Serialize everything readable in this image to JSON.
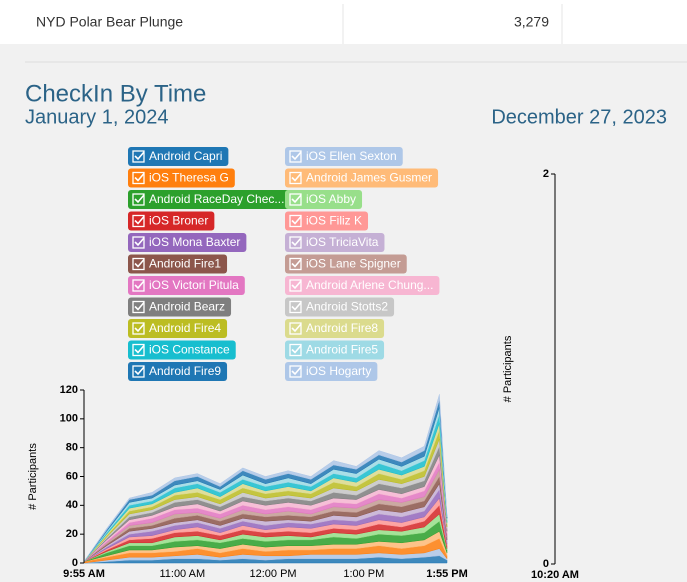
{
  "header": {
    "table_row": [
      "NYD Polar Bear Plunge",
      "3,279"
    ],
    "section_title": "CheckIn By Time"
  },
  "chart_data": [
    {
      "type": "area",
      "stacked": true,
      "title": "January 1, 2024",
      "y_label": "# Participants",
      "x": [
        "9:55 AM",
        "10:10 AM",
        "10:25 AM",
        "10:40 AM",
        "10:55 AM",
        "11:10 AM",
        "11:25 AM",
        "11:40 AM",
        "11:55 AM",
        "12:10 PM",
        "12:25 PM",
        "12:40 PM",
        "12:55 PM",
        "1:10 PM",
        "1:25 PM",
        "1:40 PM",
        "1:50 PM",
        "1:55 PM"
      ],
      "xticks": [
        "9:55 AM",
        "11:00 AM",
        "12:00 PM",
        "1:00 PM",
        "1:55 PM"
      ],
      "ylim": [
        0,
        120
      ],
      "yticks": [
        0,
        20,
        40,
        60,
        80,
        100,
        120
      ],
      "series": [
        {
          "name": "Android Capri",
          "color": "#1f77b4",
          "values": [
            0,
            1,
            2,
            2,
            3,
            3,
            2,
            3,
            2,
            3,
            3,
            3,
            3,
            4,
            3,
            4,
            5,
            2
          ]
        },
        {
          "name": "iOS Ellen Sexton",
          "color": "#aec7e8",
          "values": [
            0,
            1,
            2,
            2,
            2,
            3,
            2,
            3,
            3,
            2,
            3,
            3,
            3,
            3,
            3,
            3,
            5,
            1
          ]
        },
        {
          "name": "iOS Theresa G",
          "color": "#ff7f0e",
          "values": [
            1,
            2,
            3,
            3,
            3,
            4,
            3,
            4,
            3,
            4,
            3,
            4,
            4,
            5,
            4,
            5,
            7,
            2
          ]
        },
        {
          "name": "Android James Gusmer",
          "color": "#ffbb78",
          "values": [
            0,
            1,
            2,
            2,
            3,
            2,
            3,
            3,
            3,
            3,
            3,
            3,
            3,
            3,
            4,
            4,
            5,
            2
          ]
        },
        {
          "name": "Android RaceDay Chec...",
          "color": "#2ca02c",
          "values": [
            0,
            2,
            3,
            3,
            4,
            4,
            4,
            4,
            4,
            4,
            4,
            5,
            4,
            5,
            5,
            5,
            7,
            2
          ]
        },
        {
          "name": "iOS Abby",
          "color": "#98df8a",
          "values": [
            0,
            1,
            2,
            2,
            3,
            3,
            2,
            3,
            3,
            3,
            2,
            3,
            3,
            3,
            3,
            4,
            5,
            1
          ]
        },
        {
          "name": "iOS Broner",
          "color": "#d62728",
          "values": [
            0,
            1,
            2,
            3,
            3,
            3,
            3,
            3,
            3,
            3,
            3,
            3,
            3,
            4,
            3,
            4,
            6,
            2
          ]
        },
        {
          "name": "iOS Filiz K",
          "color": "#ff9896",
          "values": [
            0,
            1,
            2,
            2,
            2,
            3,
            2,
            3,
            2,
            3,
            3,
            3,
            3,
            3,
            3,
            3,
            5,
            1
          ]
        },
        {
          "name": "iOS Mona Baxter",
          "color": "#9467bd",
          "values": [
            0,
            1,
            2,
            3,
            3,
            3,
            3,
            3,
            3,
            3,
            3,
            3,
            3,
            4,
            4,
            4,
            6,
            2
          ]
        },
        {
          "name": "iOS TriciaVita",
          "color": "#c5b0d5",
          "values": [
            0,
            1,
            2,
            2,
            2,
            2,
            2,
            2,
            3,
            2,
            2,
            3,
            3,
            3,
            3,
            3,
            4,
            1
          ]
        },
        {
          "name": "Android Fire1",
          "color": "#8c564b",
          "values": [
            0,
            1,
            2,
            2,
            3,
            3,
            3,
            3,
            3,
            3,
            3,
            3,
            3,
            4,
            4,
            4,
            5,
            2
          ]
        },
        {
          "name": "iOS Lane Spigner",
          "color": "#c49c94",
          "values": [
            0,
            1,
            2,
            2,
            3,
            2,
            2,
            3,
            2,
            3,
            2,
            3,
            3,
            3,
            3,
            3,
            5,
            1
          ]
        },
        {
          "name": "iOS Victori Pitula",
          "color": "#e377c2",
          "values": [
            0,
            1,
            2,
            3,
            3,
            3,
            3,
            3,
            3,
            3,
            3,
            3,
            3,
            4,
            3,
            4,
            5,
            2
          ]
        },
        {
          "name": "Android Arlene Chung...",
          "color": "#f7b6d2",
          "values": [
            0,
            1,
            2,
            2,
            2,
            3,
            2,
            3,
            3,
            3,
            3,
            3,
            3,
            3,
            3,
            3,
            5,
            1
          ]
        },
        {
          "name": "Android Bearz",
          "color": "#7f7f7f",
          "values": [
            0,
            1,
            2,
            2,
            3,
            3,
            3,
            3,
            3,
            3,
            3,
            4,
            3,
            4,
            4,
            4,
            6,
            2
          ]
        },
        {
          "name": "Android Stotts2",
          "color": "#c7c7c7",
          "values": [
            0,
            1,
            2,
            2,
            2,
            2,
            2,
            3,
            2,
            2,
            2,
            3,
            3,
            3,
            3,
            3,
            5,
            1
          ]
        },
        {
          "name": "Android Fire4",
          "color": "#bcbd22",
          "values": [
            0,
            1,
            2,
            2,
            3,
            3,
            3,
            3,
            3,
            3,
            3,
            4,
            3,
            4,
            3,
            4,
            6,
            2
          ]
        },
        {
          "name": "Android Fire8",
          "color": "#dbdb8d",
          "values": [
            0,
            1,
            2,
            2,
            2,
            3,
            2,
            3,
            2,
            3,
            2,
            3,
            3,
            3,
            3,
            3,
            5,
            1
          ]
        },
        {
          "name": "iOS Constance",
          "color": "#17becf",
          "values": [
            0,
            1,
            2,
            2,
            3,
            3,
            3,
            3,
            3,
            3,
            3,
            3,
            3,
            4,
            3,
            4,
            6,
            2
          ]
        },
        {
          "name": "Android Fire5",
          "color": "#9edae5",
          "values": [
            0,
            1,
            2,
            2,
            2,
            2,
            2,
            3,
            2,
            3,
            2,
            3,
            3,
            3,
            3,
            3,
            5,
            1
          ]
        },
        {
          "name": "Android Fire9",
          "color": "#1f77b4",
          "values": [
            0,
            1,
            2,
            2,
            3,
            3,
            2,
            3,
            3,
            3,
            3,
            3,
            3,
            3,
            3,
            4,
            5,
            1
          ]
        },
        {
          "name": "iOS Hogarty",
          "color": "#aec7e8",
          "values": [
            0,
            1,
            1,
            2,
            2,
            2,
            2,
            2,
            2,
            2,
            2,
            3,
            2,
            3,
            3,
            3,
            4,
            1
          ]
        }
      ]
    },
    {
      "type": "area",
      "stacked": true,
      "title": "December 27, 2023",
      "y_label": "# Participants",
      "x": [],
      "xticks": [
        "10:20 AM"
      ],
      "ylim": [
        0,
        2
      ],
      "yticks": [
        0,
        2
      ],
      "series": []
    }
  ]
}
